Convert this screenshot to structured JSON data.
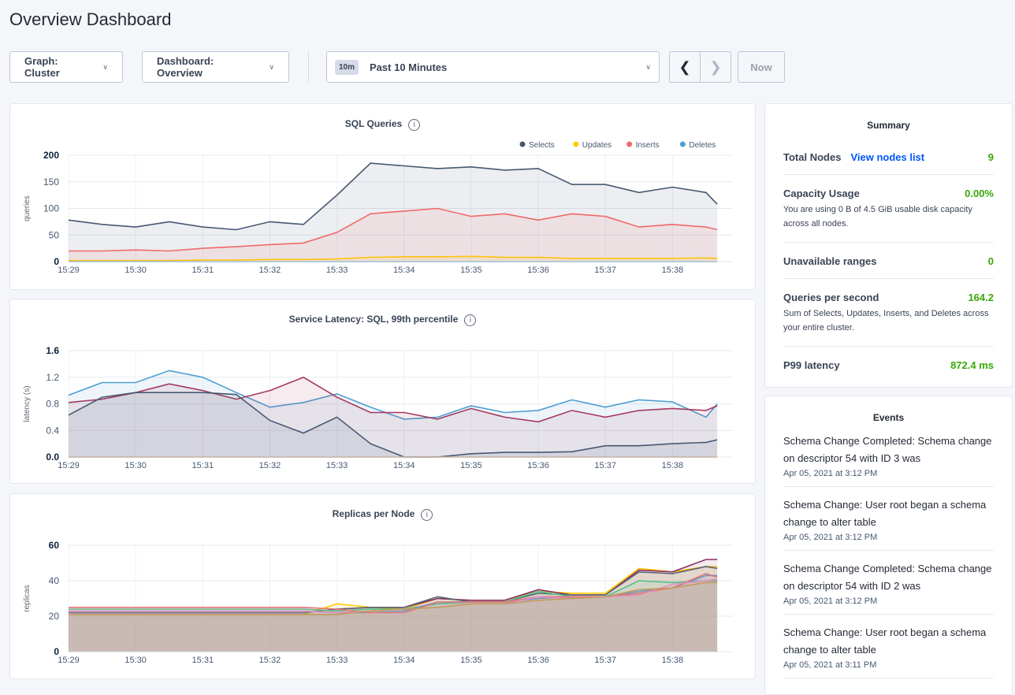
{
  "page_title": "Overview Dashboard",
  "toolbar": {
    "graph": "Graph: Cluster",
    "dashboard": "Dashboard: Overview",
    "time_badge": "10m",
    "time_range": "Past 10 Minutes",
    "prev_icon": "chevron-left-icon",
    "next_icon": "chevron-right-icon",
    "now": "Now"
  },
  "summary": {
    "title": "Summary",
    "rows": [
      {
        "label": "Total Nodes",
        "link": "View nodes list",
        "value": "9"
      },
      {
        "label": "Capacity Usage",
        "value": "0.00%",
        "desc": "You are using 0 B of 4.5 GiB usable disk capacity across all nodes."
      },
      {
        "label": "Unavailable ranges",
        "value": "0"
      },
      {
        "label": "Queries per second",
        "value": "164.2",
        "desc": "Sum of Selects, Updates, Inserts, and Deletes across your entire cluster."
      },
      {
        "label": "P99 latency",
        "value": "872.4 ms"
      }
    ]
  },
  "events": {
    "title": "Events",
    "items": [
      {
        "text": "Schema Change Completed: Schema change on descriptor 54 with ID 3 was",
        "date": "Apr 05, 2021 at 3:12 PM"
      },
      {
        "text": "Schema Change: User root began a schema change to alter table",
        "date": "Apr 05, 2021 at 3:12 PM"
      },
      {
        "text": "Schema Change Completed: Schema change on descriptor 54 with ID 2 was",
        "date": "Apr 05, 2021 at 3:12 PM"
      },
      {
        "text": "Schema Change: User root began a schema change to alter table",
        "date": "Apr 05, 2021 at 3:11 PM"
      }
    ]
  },
  "colors": {
    "accent_green": "#37a806",
    "link_blue": "#0055ff"
  },
  "chart_data": [
    {
      "type": "area",
      "title": "SQL Queries",
      "ylabel": "queries",
      "ylim": [
        0,
        200
      ],
      "yticks": [
        "0",
        "50",
        "100",
        "150",
        "200"
      ],
      "xticks": [
        "15:29",
        "15:30",
        "15:31",
        "15:32",
        "15:33",
        "15:34",
        "15:35",
        "15:36",
        "15:37",
        "15:38"
      ],
      "x": [
        "15:29:00",
        "15:29:30",
        "15:30:00",
        "15:30:30",
        "15:31:00",
        "15:31:30",
        "15:32:00",
        "15:32:30",
        "15:33:00",
        "15:33:30",
        "15:34:00",
        "15:34:30",
        "15:35:00",
        "15:35:30",
        "15:36:00",
        "15:36:30",
        "15:37:00",
        "15:37:30",
        "15:38:00",
        "15:38:30",
        "15:38:40"
      ],
      "legend": "top-right",
      "series": [
        {
          "name": "Selects",
          "color": "#475872",
          "values": [
            78,
            70,
            65,
            75,
            65,
            60,
            75,
            70,
            125,
            185,
            180,
            175,
            178,
            172,
            175,
            145,
            145,
            130,
            140,
            130,
            108
          ]
        },
        {
          "name": "Updates",
          "color": "#ffcd02",
          "values": [
            2,
            2,
            2,
            2,
            3,
            3,
            4,
            4,
            5,
            8,
            9,
            9,
            10,
            8,
            8,
            6,
            6,
            6,
            6,
            7,
            6
          ]
        },
        {
          "name": "Inserts",
          "color": "#f16969",
          "values": [
            20,
            20,
            22,
            20,
            25,
            28,
            32,
            35,
            55,
            90,
            95,
            100,
            85,
            90,
            78,
            90,
            85,
            65,
            70,
            65,
            60
          ]
        },
        {
          "name": "Deletes",
          "color": "#4e9fd1",
          "values": [
            0,
            0,
            0,
            0,
            0,
            0,
            0,
            0,
            0,
            0,
            0,
            0,
            0,
            0,
            0,
            0,
            0,
            0,
            0,
            0,
            0
          ]
        }
      ]
    },
    {
      "type": "area",
      "title": "Service Latency: SQL, 99th percentile",
      "ylabel": "latency (s)",
      "ylim": [
        0,
        1.6
      ],
      "yticks": [
        "0.0",
        "0.4",
        "0.8",
        "1.2",
        "1.6"
      ],
      "xticks": [
        "15:29",
        "15:30",
        "15:31",
        "15:32",
        "15:33",
        "15:34",
        "15:35",
        "15:36",
        "15:37",
        "15:38"
      ],
      "x": [
        "15:29:00",
        "15:29:30",
        "15:30:00",
        "15:30:30",
        "15:31:00",
        "15:31:30",
        "15:32:00",
        "15:32:30",
        "15:33:00",
        "15:33:30",
        "15:34:00",
        "15:34:30",
        "15:35:00",
        "15:35:30",
        "15:36:00",
        "15:36:30",
        "15:37:00",
        "15:37:30",
        "15:38:00",
        "15:38:30",
        "15:38:40"
      ],
      "series": [
        {
          "color": "#4e9fd1",
          "values": [
            0.93,
            1.12,
            1.12,
            1.3,
            1.2,
            0.97,
            0.75,
            0.82,
            0.95,
            0.75,
            0.57,
            0.6,
            0.77,
            0.67,
            0.7,
            0.86,
            0.75,
            0.86,
            0.83,
            0.6,
            0.8
          ]
        },
        {
          "color": "#a5395f",
          "values": [
            0.82,
            0.87,
            0.97,
            1.1,
            1.0,
            0.87,
            1.0,
            1.2,
            0.9,
            0.67,
            0.67,
            0.57,
            0.73,
            0.6,
            0.53,
            0.7,
            0.6,
            0.7,
            0.73,
            0.7,
            0.77
          ]
        },
        {
          "color": "#475872",
          "values": [
            0.63,
            0.9,
            0.97,
            0.97,
            0.97,
            0.94,
            0.55,
            0.36,
            0.6,
            0.2,
            0,
            0,
            0.05,
            0.07,
            0.07,
            0.08,
            0.17,
            0.17,
            0.2,
            0.22,
            0.26
          ]
        },
        {
          "color": "#c0783a",
          "values": [
            0,
            0,
            0,
            0,
            0,
            0,
            0,
            0,
            0,
            0,
            0,
            0,
            0,
            0,
            0,
            0,
            0,
            0,
            0,
            0,
            0
          ]
        }
      ]
    },
    {
      "type": "area",
      "title": "Replicas per Node",
      "ylabel": "replicas",
      "ylim": [
        0,
        60
      ],
      "yticks": [
        "0",
        "20",
        "40",
        "60"
      ],
      "xticks": [
        "15:29",
        "15:30",
        "15:31",
        "15:32",
        "15:33",
        "15:34",
        "15:35",
        "15:36",
        "15:37",
        "15:38"
      ],
      "x": [
        "15:29:00",
        "15:29:30",
        "15:30:00",
        "15:30:30",
        "15:31:00",
        "15:31:30",
        "15:32:00",
        "15:32:30",
        "15:33:00",
        "15:33:30",
        "15:34:00",
        "15:34:30",
        "15:35:00",
        "15:35:30",
        "15:36:00",
        "15:36:30",
        "15:37:00",
        "15:37:30",
        "15:38:00",
        "15:38:30",
        "15:38:40"
      ],
      "series": [
        {
          "color": "#ffcd02",
          "values": [
            21,
            21,
            21,
            21,
            21,
            21,
            21,
            21,
            27,
            25,
            24,
            30,
            29,
            29,
            34,
            33,
            33,
            47,
            45,
            48,
            48
          ]
        },
        {
          "color": "#8b2e62",
          "values": [
            22,
            22,
            22,
            22,
            22,
            22,
            22,
            22,
            24,
            25,
            25,
            30,
            29,
            29,
            35,
            32,
            32,
            46,
            45,
            52,
            52
          ]
        },
        {
          "color": "#5b6275",
          "values": [
            22,
            22,
            22,
            22,
            22,
            22,
            22,
            22,
            24,
            25,
            25,
            31,
            28,
            28,
            33,
            32,
            32,
            45,
            44,
            48,
            47
          ]
        },
        {
          "color": "#4fc38a",
          "values": [
            24,
            24,
            24,
            24,
            24,
            24,
            24,
            24,
            23,
            24,
            24,
            27,
            28,
            28,
            34,
            31,
            31,
            40,
            39,
            40,
            40
          ]
        },
        {
          "color": "#5b9bd5",
          "values": [
            23,
            23,
            23,
            23,
            23,
            23,
            23,
            23,
            22,
            22,
            23,
            28,
            28,
            28,
            30,
            31,
            31,
            34,
            36,
            43,
            43
          ]
        },
        {
          "color": "#e57373",
          "values": [
            25,
            25,
            25,
            25,
            25,
            25,
            25,
            25,
            24,
            22,
            22,
            28,
            28,
            28,
            31,
            31,
            31,
            33,
            36,
            44,
            42
          ]
        },
        {
          "color": "#e38cc0",
          "values": [
            23,
            23,
            23,
            23,
            23,
            23,
            23,
            23,
            22,
            23,
            24,
            25,
            27,
            27,
            31,
            30,
            31,
            32,
            38,
            40,
            41
          ]
        },
        {
          "color": "#c49a5a",
          "values": [
            21,
            21,
            21,
            21,
            21,
            21,
            21,
            21,
            21,
            23,
            24,
            25,
            27,
            27,
            29,
            30,
            31,
            35,
            36,
            39,
            39
          ]
        }
      ]
    }
  ]
}
